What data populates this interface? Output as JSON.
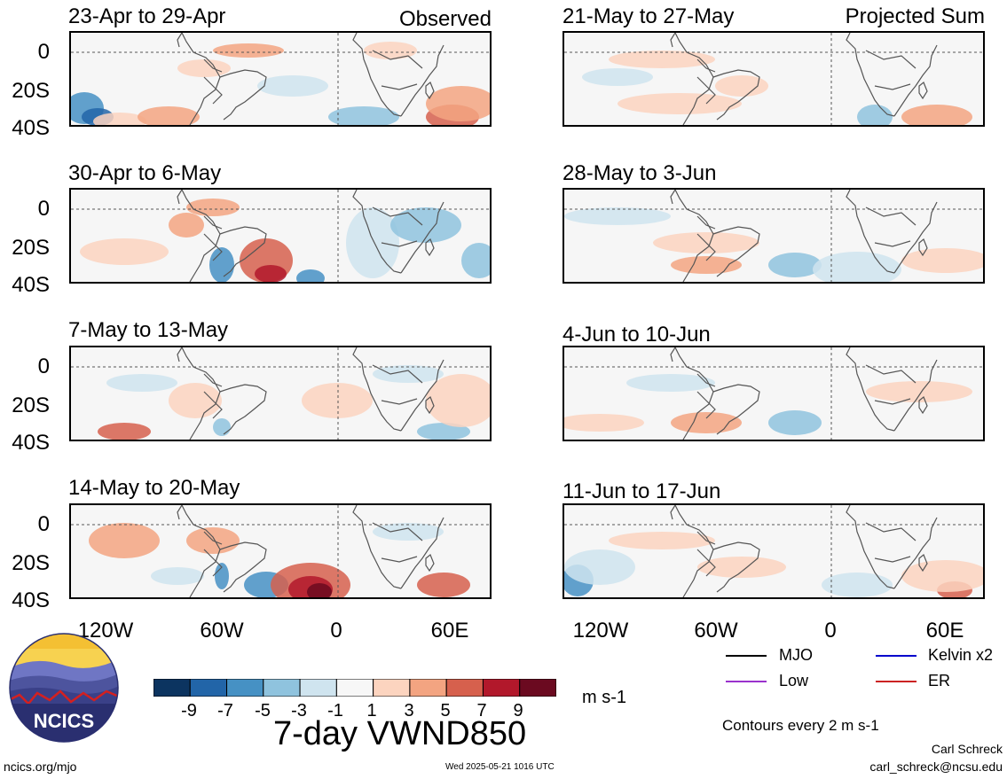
{
  "labels": {
    "observed": "Observed",
    "projected": "Projected Sum",
    "colorbar_unit": "m s-1",
    "main_title": "7-day VWND850",
    "contours": "Contours every 2 m s-1",
    "author": "Carl Schreck",
    "email": "carl_schreck@ncsu.edu",
    "website": "ncics.org/mjo",
    "timestamp": "Wed 2025-05-21 1016 UTC",
    "logo_text": "NCICS"
  },
  "y_ticks": [
    "0",
    "20S",
    "40S"
  ],
  "x_ticks": [
    "120W",
    "60W",
    "0",
    "60E"
  ],
  "panels_left": [
    {
      "title": "23-Apr to 29-Apr"
    },
    {
      "title": "30-Apr to 6-May"
    },
    {
      "title": "7-May to 13-May"
    },
    {
      "title": "14-May to 20-May"
    }
  ],
  "panels_right": [
    {
      "title": "21-May to 27-May"
    },
    {
      "title": "28-May to 3-Jun"
    },
    {
      "title": "4-Jun to 10-Jun"
    },
    {
      "title": "11-Jun to 17-Jun"
    }
  ],
  "colorbar": {
    "ticks": [
      "-9",
      "-7",
      "-5",
      "-3",
      "-1",
      "1",
      "3",
      "5",
      "7",
      "9"
    ],
    "colors": [
      "#0c3460",
      "#2265a8",
      "#4691c4",
      "#8fc3de",
      "#cfe4ef",
      "#f7f7f7",
      "#fcd4bf",
      "#f3a481",
      "#d6604d",
      "#b2182b",
      "#6b0a20"
    ]
  },
  "legend": [
    {
      "label": "MJO",
      "color": "#000000"
    },
    {
      "label": "Kelvin x2",
      "color": "#0000cc"
    },
    {
      "label": "Low",
      "color": "#9a32cd"
    },
    {
      "label": "ER",
      "color": "#cc2222"
    }
  ]
}
